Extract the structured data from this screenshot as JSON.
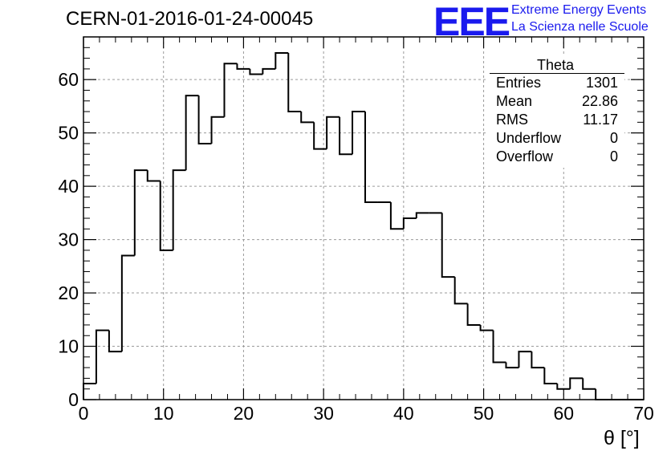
{
  "header": {
    "run_title": "CERN-01-2016-01-24-00045",
    "logo_text": "EEE",
    "logo_line1": "Extreme Energy Events",
    "logo_line2": "La Scienza nelle Scuole"
  },
  "stats": {
    "title": "Theta",
    "rows": [
      {
        "label": "Entries",
        "value": "1301"
      },
      {
        "label": "Mean",
        "value": "22.86"
      },
      {
        "label": "RMS",
        "value": "11.17"
      },
      {
        "label": "Underflow",
        "value": "0"
      },
      {
        "label": "Overflow",
        "value": "0"
      }
    ]
  },
  "colors": {
    "line": "#000000",
    "grid": "#9a9a9a",
    "logo": "#1a1aee"
  },
  "chart_data": {
    "type": "bar",
    "histogram": "step",
    "title": "CERN-01-2016-01-24-00045",
    "xlabel": "θ [°]",
    "ylabel": "",
    "xlim": [
      0,
      70
    ],
    "ylim": [
      0,
      68
    ],
    "bin_width": 1.6,
    "bin_start": 0,
    "values": [
      3,
      13,
      9,
      27,
      43,
      41,
      28,
      43,
      57,
      48,
      53,
      63,
      62,
      61,
      62,
      65,
      54,
      52,
      47,
      53,
      46,
      54,
      37,
      37,
      32,
      34,
      35,
      35,
      23,
      18,
      14,
      13,
      7,
      6,
      9,
      6,
      3,
      2,
      4,
      2,
      0,
      0,
      0,
      0
    ],
    "x_ticks": [
      0,
      10,
      20,
      30,
      40,
      50,
      60,
      70
    ],
    "x_tick_labels": [
      "0",
      "10",
      "20",
      "30",
      "40",
      "50",
      "60",
      "70"
    ],
    "y_ticks": [
      0,
      10,
      20,
      30,
      40,
      50,
      60
    ],
    "y_tick_labels": [
      "0",
      "10",
      "20",
      "30",
      "40",
      "50",
      "60"
    ],
    "grid": true,
    "legend": "top-right"
  }
}
